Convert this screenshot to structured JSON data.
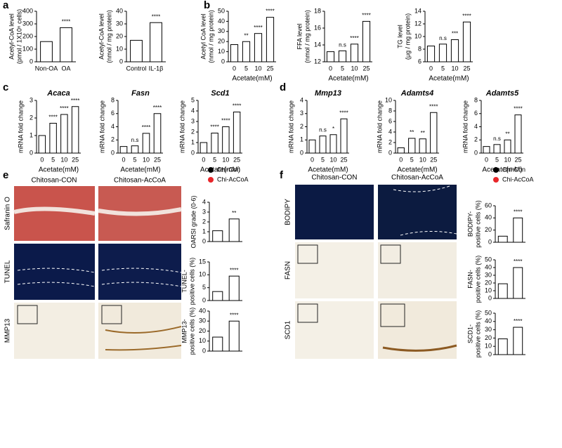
{
  "panels": [
    "a",
    "b",
    "c",
    "d",
    "e",
    "f"
  ],
  "images": {
    "e": {
      "columns": [
        "Chitosan-CON",
        "Chitosan-AcCoA"
      ],
      "rows": [
        "Safranin O",
        "TUNEL",
        "MMP13"
      ]
    },
    "f": {
      "columns": [
        "Chitosan-CON",
        "Chitosan-AcCoA"
      ],
      "rows": [
        "BODIPY",
        "FASN",
        "SCD1"
      ]
    }
  },
  "legends": {
    "e": [
      {
        "name": "Chi-Con",
        "color": "#000000"
      },
      {
        "name": "Chi-AcCoA",
        "color": "#e8262a"
      }
    ],
    "f": [
      {
        "name": "Chi-Con",
        "color": "#000000"
      },
      {
        "name": "Chi-AcCoA",
        "color": "#e8262a"
      }
    ]
  },
  "chart_data": [
    {
      "type": "bar",
      "ylabel": [
        "Acetyl-CoA level",
        "(pmol / 1X10⁶ cells)"
      ],
      "categories": [
        "Non-OA",
        "OA"
      ],
      "values": [
        160,
        270
      ],
      "annotations": [
        null,
        "****"
      ],
      "ylim": [
        0,
        400
      ],
      "yticks": [
        0,
        100,
        200,
        300,
        400
      ]
    },
    {
      "type": "bar",
      "ylabel": [
        "Acetyl-CoA level",
        "(nmol / mg protein)"
      ],
      "categories": [
        "Control",
        "IL-1β"
      ],
      "values": [
        17,
        31
      ],
      "annotations": [
        null,
        "****"
      ],
      "ylim": [
        0,
        40
      ],
      "yticks": [
        0,
        10,
        20,
        30,
        40
      ]
    },
    {
      "type": "bar",
      "ylabel": [
        "Acetyl CoA level",
        "(nmol / mg protein)"
      ],
      "xlabel": "Acetate(mM)",
      "categories": [
        "0",
        "5",
        "10",
        "25"
      ],
      "values": [
        17,
        20,
        28,
        44
      ],
      "annotations": [
        null,
        "**",
        "****",
        "****"
      ],
      "ylim": [
        0,
        50
      ],
      "yticks": [
        0,
        10,
        20,
        30,
        40,
        50
      ]
    },
    {
      "type": "bar",
      "ylabel": [
        "FFA level",
        "(nmol / mg protein)"
      ],
      "xlabel": "Acetate(mM)",
      "categories": [
        "0",
        "5",
        "10",
        "25"
      ],
      "values": [
        13.2,
        13.3,
        14.1,
        16.8
      ],
      "annotations": [
        null,
        "n.s",
        "****",
        "****"
      ],
      "ylim": [
        12,
        18
      ],
      "yticks": [
        12,
        14,
        16,
        18
      ]
    },
    {
      "type": "bar",
      "ylabel": [
        "TG level",
        "(μg / mg protein)"
      ],
      "xlabel": "Acetate(mM)",
      "categories": [
        "0",
        "5",
        "10",
        "25"
      ],
      "values": [
        8.5,
        8.8,
        9.5,
        12.3
      ],
      "annotations": [
        null,
        "n.s",
        "***",
        "****"
      ],
      "ylim": [
        6,
        14
      ],
      "yticks": [
        6,
        8,
        10,
        12,
        14
      ]
    },
    {
      "type": "bar",
      "title": "Acaca",
      "ylabel": [
        "mRNA fold change"
      ],
      "xlabel": "Acetate(mM)",
      "categories": [
        "0",
        "5",
        "10",
        "25"
      ],
      "values": [
        1,
        1.7,
        2.2,
        2.65
      ],
      "annotations": [
        null,
        "****",
        "****",
        "****"
      ],
      "ylim": [
        0,
        3
      ],
      "yticks": [
        0,
        1,
        2,
        3
      ]
    },
    {
      "type": "bar",
      "title": "Fasn",
      "ylabel": [
        "mRNA fold change"
      ],
      "xlabel": "Acetate(mM)",
      "categories": [
        "0",
        "5",
        "10",
        "25"
      ],
      "values": [
        1,
        1.1,
        3,
        6
      ],
      "annotations": [
        null,
        "n.s",
        "****",
        "****"
      ],
      "ylim": [
        0,
        8
      ],
      "yticks": [
        0,
        2,
        4,
        6,
        8
      ]
    },
    {
      "type": "bar",
      "title": "Scd1",
      "ylabel": [
        "mRNA fold change"
      ],
      "xlabel": "Acetate(mM)",
      "categories": [
        "0",
        "5",
        "10",
        "25"
      ],
      "values": [
        1,
        1.9,
        2.5,
        3.9
      ],
      "annotations": [
        null,
        "****",
        "****",
        "****"
      ],
      "ylim": [
        0,
        5
      ],
      "yticks": [
        0,
        1,
        2,
        3,
        4,
        5
      ]
    },
    {
      "type": "bar",
      "title": "Mmp13",
      "ylabel": [
        "mRNA fold change"
      ],
      "xlabel": "Acetate(mM)",
      "categories": [
        "0",
        "5",
        "10",
        "25"
      ],
      "values": [
        1,
        1.3,
        1.4,
        2.6
      ],
      "annotations": [
        null,
        "n.s",
        "*",
        "****"
      ],
      "ylim": [
        0,
        4
      ],
      "yticks": [
        0,
        1,
        2,
        3,
        4
      ]
    },
    {
      "type": "bar",
      "title": "Adamts4",
      "ylabel": [
        "mRNA fold change"
      ],
      "xlabel": "Acetate(mM)",
      "categories": [
        "0",
        "5",
        "10",
        "25"
      ],
      "values": [
        1,
        2.8,
        2.7,
        7.7
      ],
      "annotations": [
        null,
        "**",
        "**",
        "****"
      ],
      "ylim": [
        0,
        10
      ],
      "yticks": [
        0,
        2,
        4,
        6,
        8,
        10
      ]
    },
    {
      "type": "bar",
      "title": "Adamts5",
      "ylabel": [
        "mRNA fold change"
      ],
      "xlabel": "Acetate(mM)",
      "categories": [
        "0",
        "5",
        "10",
        "25"
      ],
      "values": [
        1,
        1.3,
        2,
        5.8
      ],
      "annotations": [
        null,
        "n.s",
        "**",
        "****"
      ],
      "ylim": [
        0,
        8
      ],
      "yticks": [
        0,
        2,
        4,
        6,
        8
      ]
    },
    {
      "type": "bar",
      "ylabel": [
        "OARSI grade (0-6)"
      ],
      "categories": [
        null,
        null
      ],
      "values": [
        1.1,
        2.3
      ],
      "annotations": [
        null,
        "**"
      ],
      "ylim": [
        0,
        4
      ],
      "yticks": [
        0,
        1,
        2,
        3,
        4
      ]
    },
    {
      "type": "bar",
      "ylabel": [
        "TUNEL-",
        "positive cells (%)"
      ],
      "categories": [
        null,
        null
      ],
      "values": [
        3.5,
        9.5
      ],
      "annotations": [
        null,
        "****"
      ],
      "ylim": [
        0,
        15
      ],
      "yticks": [
        0,
        5,
        10,
        15
      ]
    },
    {
      "type": "bar",
      "ylabel": [
        "MMP13-",
        "positive cells (%)"
      ],
      "categories": [
        null,
        null
      ],
      "values": [
        14,
        30
      ],
      "annotations": [
        null,
        "****"
      ],
      "ylim": [
        0,
        40
      ],
      "yticks": [
        0,
        10,
        20,
        30,
        40
      ]
    },
    {
      "type": "bar",
      "ylabel": [
        "BODIPY-",
        "positive cells (%)"
      ],
      "categories": [
        null,
        null
      ],
      "values": [
        10,
        40
      ],
      "annotations": [
        null,
        "****"
      ],
      "ylim": [
        0,
        60
      ],
      "yticks": [
        0,
        20,
        40,
        60
      ]
    },
    {
      "type": "bar",
      "ylabel": [
        "FASN-",
        "positive cells (%)"
      ],
      "categories": [
        null,
        null
      ],
      "values": [
        19,
        40
      ],
      "annotations": [
        null,
        "****"
      ],
      "ylim": [
        0,
        50
      ],
      "yticks": [
        0,
        10,
        20,
        30,
        40,
        50
      ]
    },
    {
      "type": "bar",
      "ylabel": [
        "SCD1-",
        "positive cells (%)"
      ],
      "categories": [
        null,
        null
      ],
      "values": [
        19,
        33
      ],
      "annotations": [
        null,
        "****"
      ],
      "ylim": [
        0,
        50
      ],
      "yticks": [
        0,
        10,
        20,
        30,
        40,
        50
      ]
    }
  ]
}
